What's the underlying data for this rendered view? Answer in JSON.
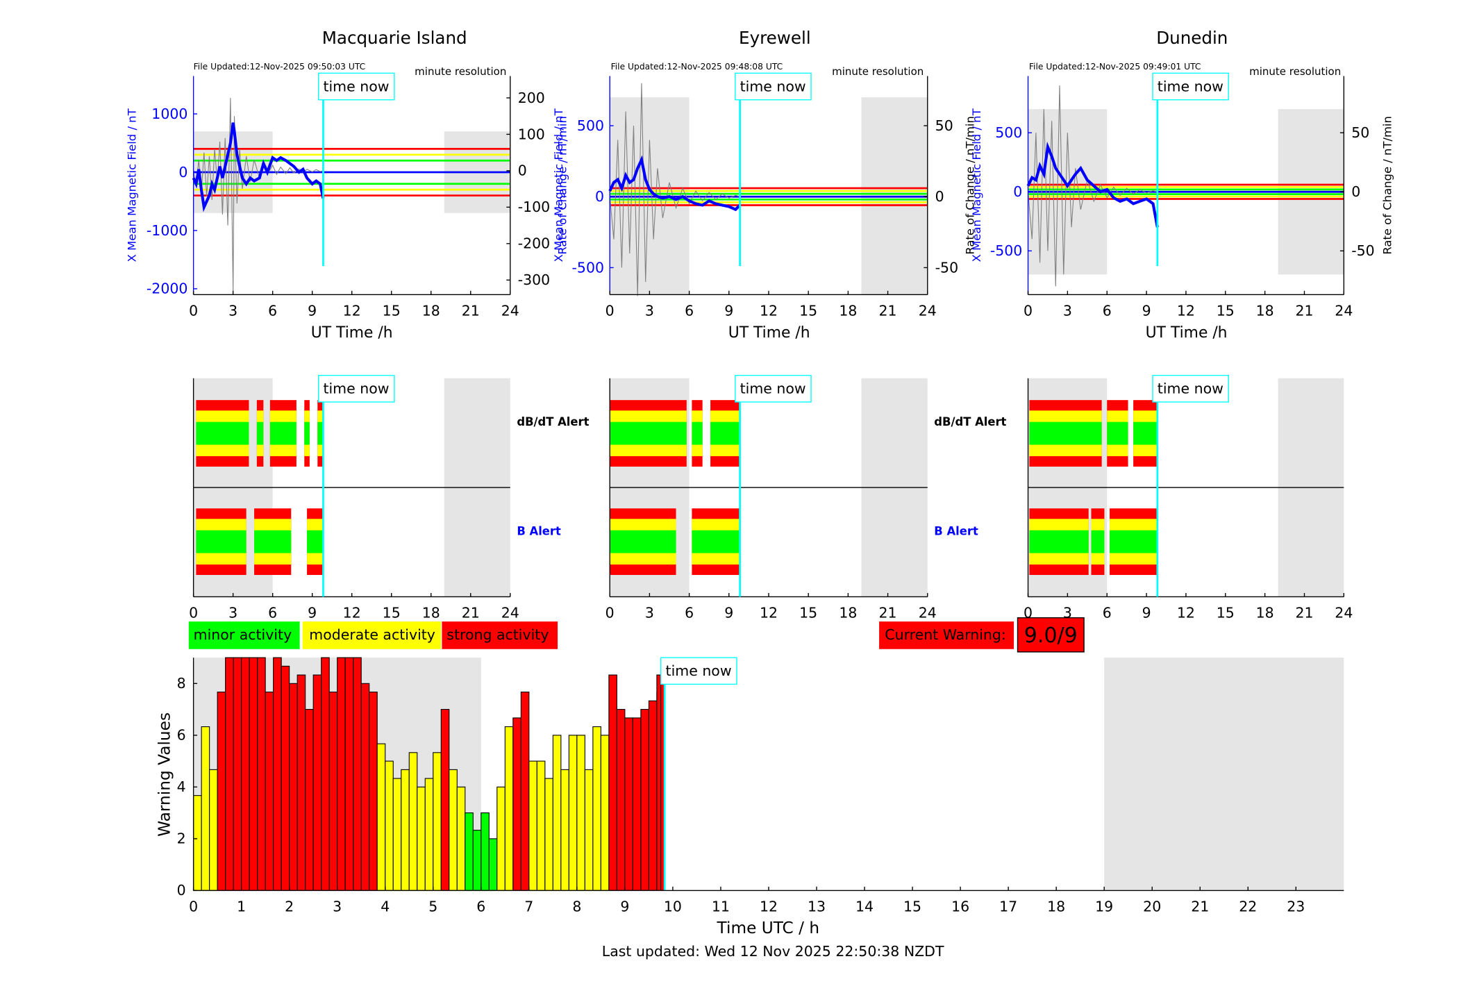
{
  "figure": {
    "stations": [
      {
        "name": "Macquarie Island",
        "file_updated": "File Updated:12-Nov-2025 09:50:03 UTC",
        "resolution": "minute resolution",
        "left_label": "X Mean Magnetic Field / nT",
        "right_label": "Rate of Change / nT/min",
        "xlabel": "UT Time /h",
        "now_label": "time now",
        "dbdt_label": "dB/dT Alert",
        "b_label": "B Alert"
      },
      {
        "name": "Eyrewell",
        "file_updated": "File Updated:12-Nov-2025 09:48:08 UTC",
        "resolution": "minute resolution",
        "left_label": "X Mean Magnetic Field / nT",
        "right_label": "Rate of Change / nT/min",
        "xlabel": "UT Time /h",
        "now_label": "time now",
        "dbdt_label": "dB/dT Alert",
        "b_label": "B Alert"
      },
      {
        "name": "Dunedin",
        "file_updated": "File Updated:12-Nov-2025 09:49:01 UTC",
        "resolution": "minute resolution",
        "left_label": "X Mean Magnetic Field / nT",
        "right_label": "Rate of Change / nT/min",
        "xlabel": "UT Time /h",
        "now_label": "time now",
        "dbdt_label": "dB/dT Alert",
        "b_label": "B Alert"
      }
    ],
    "legend": {
      "minor": "minor activity",
      "moderate": "moderate activity",
      "strong": "strong activity"
    },
    "current_warning": {
      "label": "Current Warning:",
      "value": "9.0/9"
    },
    "warning_chart": {
      "ylabel": "Warning Values",
      "xlabel": "Time UTC / h",
      "now_label": "time now"
    },
    "last_updated": "Last updated: Wed 12 Nov 2025 22:50:38 NZDT"
  },
  "chart_data": [
    {
      "type": "line",
      "title": "Macquarie Island",
      "subtitle": "File Updated:12-Nov-2025 09:50:03 UTC",
      "xlabel": "UT Time /h",
      "ylabel": "X Mean Magnetic Field / nT",
      "y2label": "Rate of Change / nT/min",
      "xlim": [
        0,
        24
      ],
      "ylim": [
        -2100,
        1650
      ],
      "y2lim": [
        -340,
        260
      ],
      "x_ticks": [
        0,
        3,
        6,
        9,
        12,
        15,
        18,
        21,
        24
      ],
      "y_ticks": [
        -2000,
        -1000,
        0,
        1000
      ],
      "y2_ticks": [
        -300,
        -200,
        -100,
        0,
        100,
        200
      ],
      "now_hour": 9.83,
      "night_shading": [
        [
          0,
          6
        ],
        [
          19,
          24
        ]
      ],
      "shading_ylim": [
        -700,
        700
      ],
      "thresholds": [
        {
          "value": -400,
          "color": "#ff0000"
        },
        {
          "value": -300,
          "color": "#ffff00"
        },
        {
          "value": -200,
          "color": "#00ff00"
        },
        {
          "value": 200,
          "color": "#00ff00"
        },
        {
          "value": 300,
          "color": "#ffff00"
        },
        {
          "value": 400,
          "color": "#ff0000"
        }
      ],
      "series": [
        {
          "color": "#0000ff",
          "x": [
            0,
            0.2,
            0.4,
            0.6,
            0.8,
            1.0,
            1.2,
            1.4,
            1.6,
            1.8,
            2.0,
            2.2,
            2.4,
            2.6,
            2.8,
            3.0,
            3.1,
            3.3,
            3.5,
            3.7,
            4.0,
            4.3,
            4.6,
            5.0,
            5.3,
            5.6,
            6.0,
            6.3,
            6.6,
            7.0,
            7.3,
            7.6,
            8.0,
            8.3,
            8.6,
            9.0,
            9.3,
            9.6,
            9.83
          ],
          "y": [
            -100,
            -200,
            50,
            -300,
            -600,
            -500,
            -400,
            -200,
            -300,
            -100,
            100,
            -100,
            100,
            300,
            500,
            850,
            700,
            300,
            100,
            -100,
            -200,
            -100,
            -150,
            -100,
            150,
            0,
            250,
            200,
            250,
            200,
            150,
            100,
            0,
            50,
            -100,
            -200,
            -150,
            -200,
            -450
          ]
        }
      ],
      "rate_of_change_y2": [
        0,
        -40,
        30,
        -60,
        50,
        -70,
        40,
        -80,
        60,
        -30,
        80,
        -120,
        90,
        -150,
        200,
        -330,
        150,
        -90,
        60,
        -50,
        40,
        -30,
        30,
        -20,
        20,
        -10,
        15,
        -10,
        10,
        -8,
        8,
        -6,
        5,
        -4,
        4,
        -3,
        3,
        -2,
        0
      ]
    },
    {
      "type": "line",
      "title": "Eyrewell",
      "subtitle": "File Updated:12-Nov-2025 09:48:08 UTC",
      "xlabel": "UT Time /h",
      "ylabel": "X Mean Magnetic Field / nT",
      "y2label": "Rate of Change / nT/min",
      "xlim": [
        0,
        24
      ],
      "ylim": [
        -690,
        850
      ],
      "y2lim": [
        -69,
        85
      ],
      "x_ticks": [
        0,
        3,
        6,
        9,
        12,
        15,
        18,
        21,
        24
      ],
      "y_ticks": [
        -500,
        0,
        500
      ],
      "y2_ticks": [
        -50,
        0,
        50
      ],
      "now_hour": 9.83,
      "night_shading": [
        [
          0,
          6
        ],
        [
          19,
          24
        ]
      ],
      "shading_ylim": [
        -690,
        700
      ],
      "thresholds": [
        {
          "value": -60,
          "color": "#ff0000"
        },
        {
          "value": -40,
          "color": "#ffff00"
        },
        {
          "value": -20,
          "color": "#00ff00"
        },
        {
          "value": 20,
          "color": "#00ff00"
        },
        {
          "value": 40,
          "color": "#ffff00"
        },
        {
          "value": 60,
          "color": "#ff0000"
        }
      ],
      "series": [
        {
          "color": "#0000ff",
          "x": [
            0,
            0.3,
            0.6,
            0.9,
            1.2,
            1.5,
            1.8,
            2.1,
            2.4,
            2.7,
            3.0,
            3.3,
            3.6,
            4.0,
            4.5,
            5.0,
            5.5,
            6.0,
            6.5,
            7.0,
            7.5,
            8.0,
            8.5,
            9.0,
            9.5,
            9.83
          ],
          "y": [
            40,
            100,
            120,
            60,
            150,
            100,
            120,
            200,
            260,
            120,
            50,
            20,
            0,
            -10,
            0,
            -20,
            0,
            -30,
            -50,
            -60,
            -30,
            -50,
            -60,
            -70,
            -90,
            -60
          ]
        }
      ],
      "rate_of_change_y2": [
        0,
        -30,
        40,
        -50,
        60,
        -40,
        50,
        -70,
        80,
        -60,
        40,
        -30,
        20,
        -15,
        10,
        -8,
        6,
        -5,
        4,
        -3,
        3,
        -2,
        2,
        -1,
        1,
        0
      ]
    },
    {
      "type": "line",
      "title": "Dunedin",
      "subtitle": "File Updated:12-Nov-2025 09:49:01 UTC",
      "xlabel": "UT Time /h",
      "ylabel": "X Mean Magnetic Field / nT",
      "y2label": "Rate of Change / nT/min",
      "xlim": [
        0,
        24
      ],
      "ylim": [
        -870,
        980
      ],
      "y2lim": [
        -87,
        98
      ],
      "x_ticks": [
        0,
        3,
        6,
        9,
        12,
        15,
        18,
        21,
        24
      ],
      "y_ticks": [
        -500,
        0,
        500
      ],
      "y2_ticks": [
        -50,
        0,
        50
      ],
      "now_hour": 9.83,
      "night_shading": [
        [
          0,
          6
        ],
        [
          19,
          24
        ]
      ],
      "shading_ylim": [
        -700,
        700
      ],
      "thresholds": [
        {
          "value": -60,
          "color": "#ff0000"
        },
        {
          "value": -40,
          "color": "#ffff00"
        },
        {
          "value": -20,
          "color": "#00ff00"
        },
        {
          "value": 20,
          "color": "#00ff00"
        },
        {
          "value": 40,
          "color": "#ffff00"
        },
        {
          "value": 60,
          "color": "#ff0000"
        }
      ],
      "series": [
        {
          "color": "#0000ff",
          "x": [
            0,
            0.3,
            0.6,
            0.9,
            1.2,
            1.5,
            1.8,
            2.1,
            2.4,
            2.7,
            3.0,
            3.3,
            3.6,
            4.0,
            4.5,
            5.0,
            5.5,
            6.0,
            6.5,
            7.0,
            7.5,
            8.0,
            8.5,
            9.0,
            9.5,
            9.83
          ],
          "y": [
            50,
            120,
            100,
            220,
            150,
            380,
            300,
            200,
            150,
            100,
            50,
            100,
            150,
            200,
            100,
            50,
            0,
            20,
            -50,
            -80,
            -60,
            -100,
            -80,
            -60,
            -100,
            -300
          ]
        }
      ],
      "rate_of_change_y2": [
        0,
        -40,
        50,
        -60,
        70,
        -50,
        60,
        -80,
        90,
        -70,
        50,
        -30,
        20,
        -15,
        10,
        -8,
        6,
        -5,
        4,
        -3,
        3,
        -2,
        2,
        -1,
        1,
        0
      ]
    },
    {
      "type": "bar",
      "title": "",
      "xlabel": "Time UTC / h",
      "ylabel": "Warning Values",
      "xlim": [
        0,
        24
      ],
      "ylim": [
        0,
        9
      ],
      "x_ticks": [
        0,
        1,
        2,
        3,
        4,
        5,
        6,
        7,
        8,
        9,
        10,
        11,
        12,
        13,
        14,
        15,
        16,
        17,
        18,
        19,
        20,
        21,
        22,
        23
      ],
      "y_ticks": [
        0,
        2,
        4,
        6,
        8
      ],
      "now_hour": 9.83,
      "night_shading": [
        [
          0,
          6
        ],
        [
          19,
          24
        ]
      ],
      "bar_width_hours": 0.1667,
      "x_start": [
        0,
        0.1667,
        0.3333,
        0.5,
        0.6667,
        0.8333,
        1,
        1.1667,
        1.3333,
        1.5,
        1.6667,
        1.8333,
        2,
        2.1667,
        2.3333,
        2.5,
        2.6667,
        2.8333,
        3,
        3.1667,
        3.3333,
        3.5,
        3.6667,
        3.8333,
        4,
        4.1667,
        4.3333,
        4.5,
        4.6667,
        4.8333,
        5,
        5.1667,
        5.3333,
        5.5,
        5.6667,
        5.8333,
        6,
        6.1667,
        6.3333,
        6.5,
        6.6667,
        6.8333,
        7,
        7.1667,
        7.3333,
        7.5,
        7.6667,
        7.8333,
        8,
        8.1667,
        8.3333,
        8.5,
        8.6667,
        8.8333,
        9,
        9.1667,
        9.3333,
        9.5,
        9.6667
      ],
      "values": [
        3.67,
        6.33,
        4.67,
        7.67,
        9,
        9,
        9,
        9,
        9,
        7.67,
        9,
        8.67,
        8,
        8.33,
        7,
        8.33,
        9,
        7.67,
        9,
        9,
        9,
        8,
        7.67,
        5.67,
        5,
        4.33,
        4.67,
        5.33,
        4,
        4.33,
        5.33,
        7,
        4.67,
        4,
        3,
        2.33,
        3,
        2,
        4,
        6.33,
        6.67,
        7.67,
        5,
        5,
        4.33,
        6,
        4.67,
        6,
        6,
        4.67,
        6.33,
        6,
        8.33,
        7,
        6.67,
        6.67,
        7,
        7.33,
        7.67
      ],
      "tail": {
        "x_start": 9.6667,
        "values": [
          8.33,
          8
        ]
      },
      "level_colors": {
        "minor": "#00ff00",
        "moderate": "#ffff00",
        "strong": "#ff0000"
      },
      "legend": [
        "minor activity",
        "moderate activity",
        "strong activity"
      ]
    }
  ]
}
